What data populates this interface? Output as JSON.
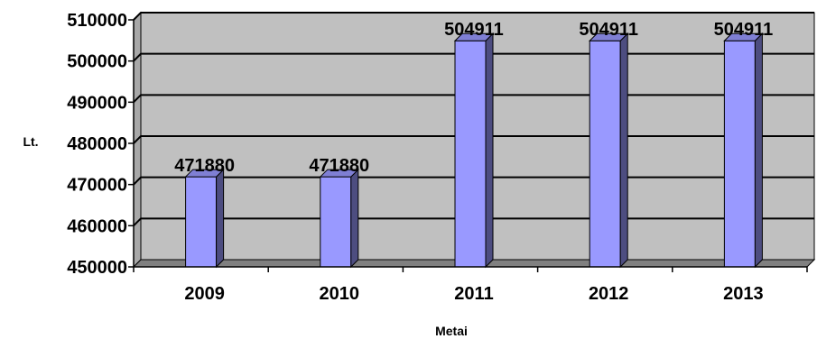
{
  "chart_data": {
    "type": "bar",
    "categories": [
      "2009",
      "2010",
      "2011",
      "2012",
      "2013"
    ],
    "values": [
      471880,
      471880,
      504911,
      504911,
      504911
    ],
    "data_labels": [
      "471880",
      "471880",
      "504911",
      "504911",
      "504911"
    ],
    "title": "",
    "xlabel": "Metai",
    "ylabel": "Lt.",
    "ylim": [
      450000,
      510000
    ],
    "yticks": [
      "450000",
      "460000",
      "470000",
      "480000",
      "490000",
      "500000",
      "510000"
    ],
    "grid": true,
    "legend": "none",
    "colors": {
      "bar_front": "#9999ff",
      "bar_side": "#4d4d80",
      "bar_top": "#7f7fd4",
      "plot_wall": "#c0c0c0",
      "floor": "#808080",
      "gridline": "#000000"
    }
  }
}
